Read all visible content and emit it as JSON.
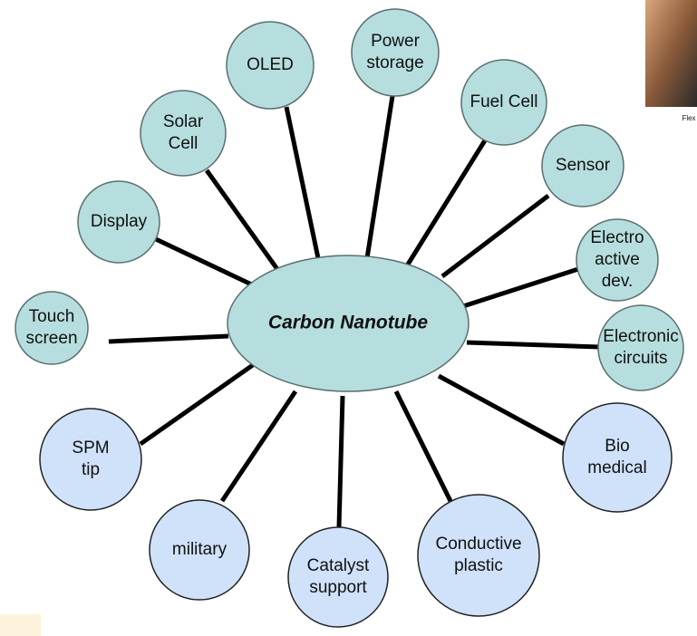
{
  "center": {
    "label": "Carbon Nanotube"
  },
  "nodes": [
    {
      "lines": [
        "Touch",
        "screen"
      ]
    },
    {
      "lines": [
        "Display"
      ]
    },
    {
      "lines": [
        "Solar",
        "Cell"
      ]
    },
    {
      "lines": [
        "OLED"
      ]
    },
    {
      "lines": [
        "Power",
        "storage"
      ]
    },
    {
      "lines": [
        "Fuel Cell"
      ]
    },
    {
      "lines": [
        "Sensor"
      ]
    },
    {
      "lines": [
        "Electro",
        "active",
        "dev."
      ]
    },
    {
      "lines": [
        "Electronic",
        "circuits"
      ]
    },
    {
      "lines": [
        "SPM",
        "tip"
      ]
    },
    {
      "lines": [
        "military"
      ]
    },
    {
      "lines": [
        "Catalyst",
        "support"
      ]
    },
    {
      "lines": [
        "Conductive",
        "plastic"
      ]
    },
    {
      "lines": [
        "Bio",
        "medical"
      ]
    }
  ],
  "photo_caption": "Flex"
}
